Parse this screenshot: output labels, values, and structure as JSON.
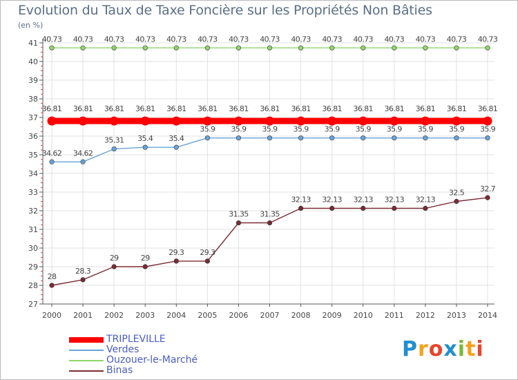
{
  "header": {
    "title": "Evolution du Taux de Taxe Foncière sur les Propriétés Non Bâties",
    "subtitle": "(en %)"
  },
  "logo": {
    "text": "Proxiti",
    "letters": [
      "P",
      "r",
      "o",
      "x",
      "i",
      "t",
      "i"
    ],
    "colors": [
      "#1f8fd1",
      "#f2a31b",
      "#e8452c",
      "#1f8fd1",
      "#7bb83a",
      "#f2a31b",
      "#e8452c"
    ]
  },
  "chart_data": {
    "type": "line",
    "title": "Evolution du Taux de Taxe Foncière sur les Propriétés Non Bâties",
    "ylabel": "(en %)",
    "xlabel": "",
    "ylim": [
      27,
      41
    ],
    "yticks": [
      27,
      28,
      29,
      30,
      31,
      32,
      33,
      34,
      35,
      36,
      37,
      38,
      39,
      40,
      41
    ],
    "grid": true,
    "legend_position": "bottom-left",
    "x": [
      "2000",
      "2001",
      "2002",
      "2003",
      "2004",
      "2005",
      "2006",
      "2007",
      "2008",
      "2009",
      "2010",
      "2011",
      "2012",
      "2013",
      "2014"
    ],
    "series": [
      {
        "name": "TRIPLEVILLE",
        "color": "#ff0000",
        "emphasis": true,
        "values": [
          36.81,
          36.81,
          36.81,
          36.81,
          36.81,
          36.81,
          36.81,
          36.81,
          36.81,
          36.81,
          36.81,
          36.81,
          36.81,
          36.81,
          36.81
        ],
        "labels": [
          "36.81",
          "36.81",
          "36.81",
          "36.81",
          "36.81",
          "36.81",
          "36.81",
          "36.81",
          "36.81",
          "36.81",
          "36.81",
          "36.81",
          "36.81",
          "36.81",
          "36.81"
        ]
      },
      {
        "name": "Verdes",
        "color": "#6aa3d8",
        "emphasis": false,
        "values": [
          34.62,
          34.62,
          35.31,
          35.4,
          35.4,
          35.9,
          35.9,
          35.9,
          35.9,
          35.9,
          35.9,
          35.9,
          35.9,
          35.9,
          35.9
        ],
        "labels": [
          "34.62",
          "34.62",
          "35.31",
          "35.4",
          "35.4",
          "35.9",
          "35.9",
          "35.9",
          "35.9",
          "35.9",
          "35.9",
          "35.9",
          "35.9",
          "35.9",
          "35.9"
        ]
      },
      {
        "name": "Ouzouer-le-Marché",
        "color": "#8ed66a",
        "emphasis": false,
        "values": [
          40.73,
          40.73,
          40.73,
          40.73,
          40.73,
          40.73,
          40.73,
          40.73,
          40.73,
          40.73,
          40.73,
          40.73,
          40.73,
          40.73,
          40.73
        ],
        "labels": [
          "40.73",
          "40.73",
          "40.73",
          "40.73",
          "40.73",
          "40.73",
          "40.73",
          "40.73",
          "40.73",
          "40.73",
          "40.73",
          "40.73",
          "40.73",
          "40.73",
          "40.73"
        ]
      },
      {
        "name": "Binas",
        "color": "#7a2b33",
        "emphasis": false,
        "values": [
          28,
          28.3,
          29,
          29,
          29.3,
          29.3,
          31.35,
          31.35,
          32.13,
          32.13,
          32.13,
          32.13,
          32.13,
          32.5,
          32.7
        ],
        "labels": [
          "28",
          "28.3",
          "29",
          "29",
          "29.3",
          "29.3",
          "31.35",
          "31.35",
          "32.13",
          "32.13",
          "32.13",
          "32.13",
          "32.13",
          "32.5",
          "32.7"
        ]
      }
    ]
  }
}
